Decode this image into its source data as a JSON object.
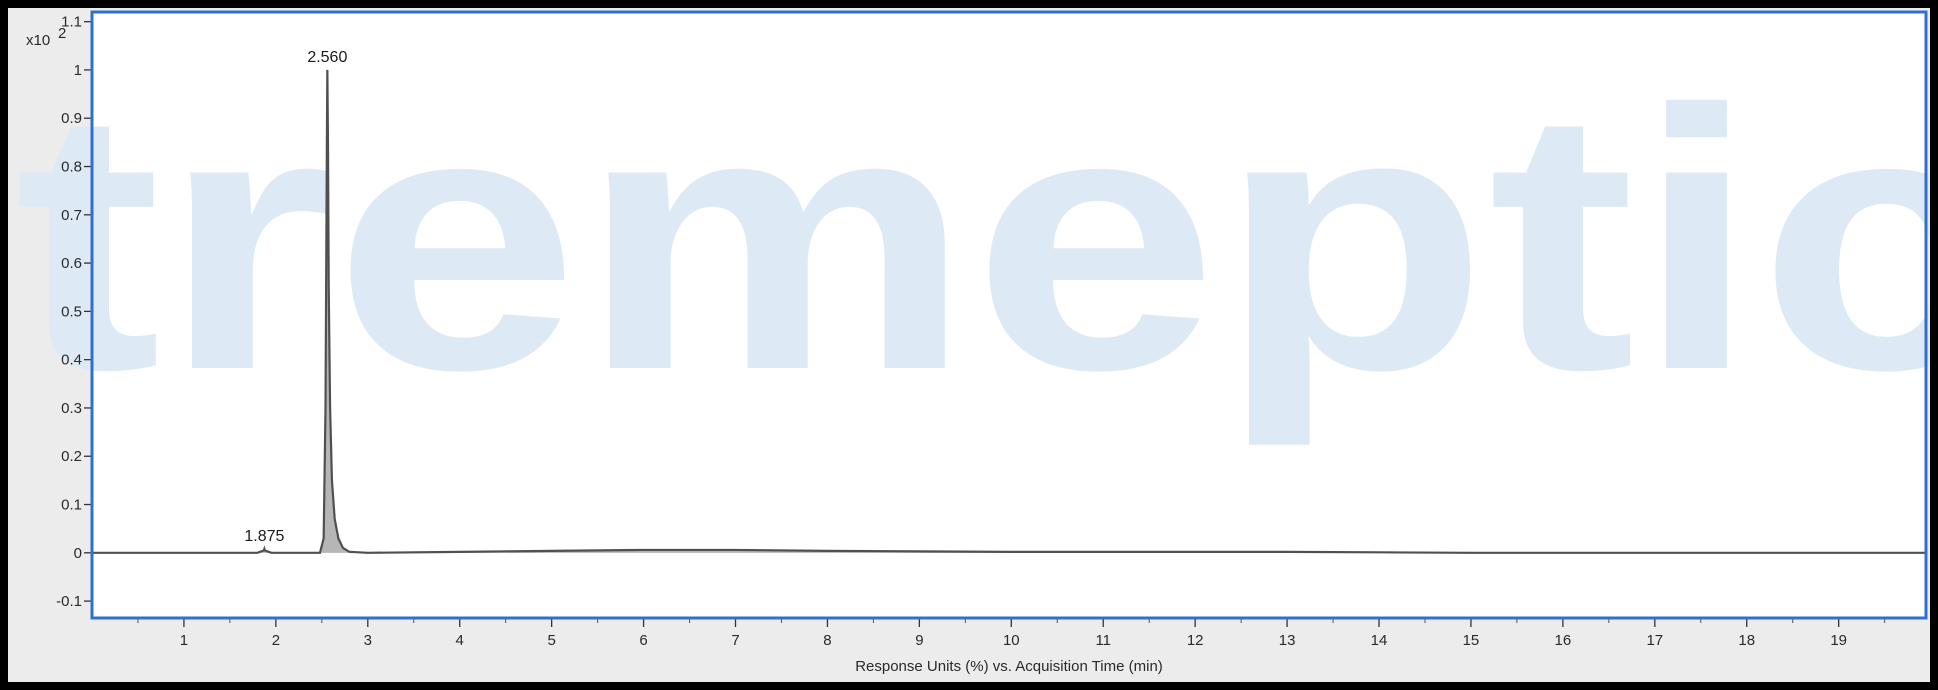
{
  "chart_data": {
    "type": "line",
    "y_multiplier_label": "x10",
    "y_multiplier_exponent": "2",
    "xlabel": "Response Units (%) vs. Acquisition Time (min)",
    "ylabel": "",
    "xlim": [
      0,
      19.95
    ],
    "ylim": [
      -0.135,
      1.12
    ],
    "x_ticks": [
      1,
      2,
      3,
      4,
      5,
      6,
      7,
      8,
      9,
      10,
      11,
      12,
      13,
      14,
      15,
      16,
      17,
      18,
      19
    ],
    "y_ticks": [
      -0.1,
      0,
      0.1,
      0.2,
      0.3,
      0.4,
      0.5,
      0.6,
      0.7,
      0.8,
      0.9,
      1,
      1.1
    ],
    "grid": false,
    "series": [
      {
        "x": [
          0,
          1.0,
          1.8,
          1.87,
          1.875,
          1.88,
          1.95,
          2.3,
          2.48,
          2.52,
          2.54,
          2.555,
          2.56,
          2.567,
          2.575,
          2.59,
          2.61,
          2.64,
          2.68,
          2.73,
          2.8,
          3.0,
          4.0,
          5.0,
          6.0,
          7.0,
          8.0,
          9.0,
          10.0,
          11.0,
          12.0,
          13.0,
          14.0,
          15.0,
          16.0,
          17.0,
          18.0,
          19.0,
          19.95
        ],
        "y": [
          0,
          0,
          0,
          0.005,
          0.008,
          0.005,
          0,
          0,
          0,
          0.03,
          0.3,
          0.85,
          1.0,
          0.85,
          0.55,
          0.3,
          0.15,
          0.07,
          0.03,
          0.01,
          0.002,
          0,
          0.002,
          0.004,
          0.006,
          0.006,
          0.004,
          0.003,
          0.002,
          0.002,
          0.002,
          0.002,
          0.001,
          0.0,
          0.0,
          0.0,
          0.0,
          0.0,
          0.0
        ]
      }
    ],
    "annotations": [
      {
        "x": 2.56,
        "y": 1.0,
        "text": "2.560"
      },
      {
        "x": 1.875,
        "y": 0.008,
        "text": "1.875"
      }
    ],
    "watermark": "tremeptic",
    "colors": {
      "trace": "#505050",
      "fill": "#7a7a7a",
      "plot_border": "#2f6fd1",
      "frame_bg": "#ececec",
      "plot_bg": "#ffffff",
      "watermark": "#dde9f4"
    }
  }
}
